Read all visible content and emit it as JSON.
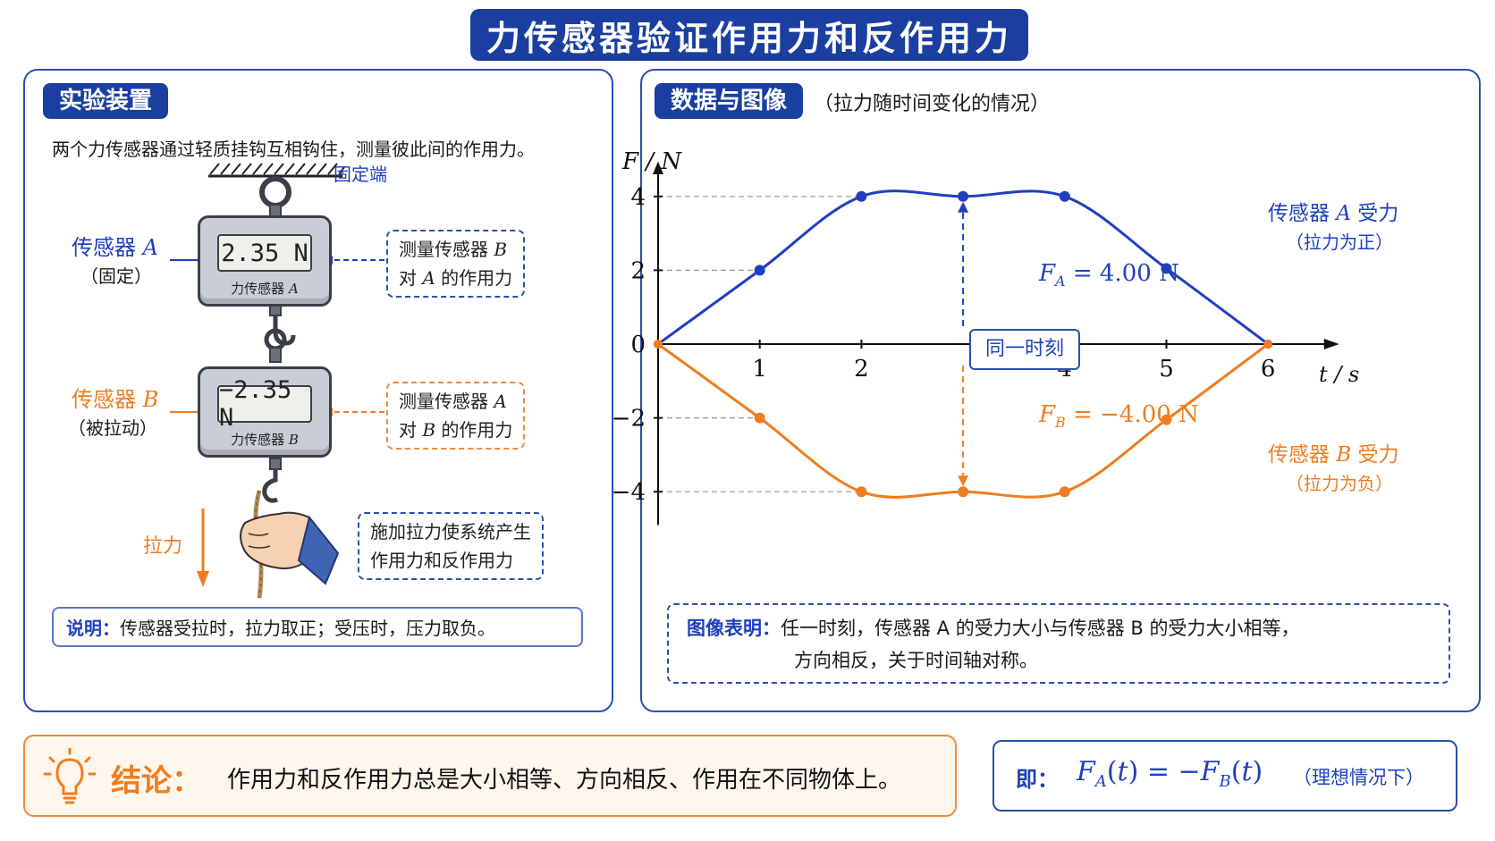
{
  "title": "力传感器验证作用力和反作用力",
  "left": {
    "section_label": "实验装置",
    "description": "两个力传感器通过轻质挂钩互相钩住，测量彼此间的作用力。",
    "fixed_end": "固定端",
    "sensor_a": {
      "label": "传感器",
      "letter": "A",
      "role": "（固定）",
      "display": "2.35 N",
      "device_name": "力传感器",
      "device_letter": "A"
    },
    "sensor_b": {
      "label": "传感器",
      "letter": "B",
      "role": "（被拉动）",
      "display": "−2.35 N",
      "device_name": "力传感器",
      "device_letter": "B"
    },
    "callout_a": {
      "line1_pre": "测量传感器",
      "line1_letter": "B",
      "line2_pre": "对",
      "line2_letter": "A",
      "line2_post": "的作用力"
    },
    "callout_b": {
      "line1_pre": "测量传感器",
      "line1_letter": "A",
      "line2_pre": "对",
      "line2_letter": "B",
      "line2_post": "的作用力"
    },
    "pull_label": "拉力",
    "pull_note": {
      "line1": "施加拉力使系统产生",
      "line2": "作用力和反作用力"
    },
    "note_key": "说明：",
    "note_text": "传感器受拉时，拉力取正；受压时，压力取负。"
  },
  "right": {
    "section_label": "数据与图像",
    "subtitle": "（拉力随时间变化的情况）",
    "same_moment": "同一时刻",
    "fa_annot": {
      "sym": "F",
      "sub": "A",
      "rest": "= 4.00 N"
    },
    "fb_annot": {
      "sym": "F",
      "sub": "B",
      "rest": "= −4.00 N"
    },
    "series_a_label": {
      "pre": "传感器",
      "letter": "A",
      "post": "受力",
      "sub": "（拉力为正）"
    },
    "series_b_label": {
      "pre": "传感器",
      "letter": "B",
      "post": "受力",
      "sub": "（拉力为负）"
    },
    "note_key": "图像表明：",
    "note_line1": "任一时刻，传感器 A 的受力大小与传感器 B 的受力大小相等，",
    "note_line2": "方向相反，关于时间轴对称。"
  },
  "chart_data": {
    "type": "line",
    "xlabel": "t / s",
    "ylabel": "F / N",
    "xlim": [
      0,
      6.6
    ],
    "ylim": [
      -4.5,
      4.5
    ],
    "x_ticks": [
      "1",
      "2",
      "4",
      "5",
      "6"
    ],
    "y_ticks": [
      "4",
      "2",
      "0",
      "−2",
      "−4"
    ],
    "series": [
      {
        "name": "传感器 A 受力",
        "color": "#1f3fbf",
        "x": [
          0,
          1,
          2,
          3,
          4,
          5,
          6
        ],
        "y": [
          0,
          2,
          4,
          4,
          4,
          2.05,
          0
        ],
        "markers_at": [
          1,
          2,
          3,
          4,
          5
        ]
      },
      {
        "name": "传感器 B 受力",
        "color": "#f07d1f",
        "x": [
          0,
          1,
          2,
          3,
          4,
          5,
          6
        ],
        "y": [
          0,
          -2,
          -4,
          -4,
          -4,
          -2.05,
          0
        ],
        "markers_at": [
          1,
          2,
          3,
          4,
          5
        ]
      }
    ]
  },
  "conclusion": {
    "key": "结论：",
    "text": "作用力和反作用力总是大小相等、方向相反、作用在不同物体上。"
  },
  "formula": {
    "key": "即：",
    "expr": "F_A(t) = −F_B(t)",
    "condition": "（理想情况下）"
  },
  "colors": {
    "blue": "#1f3fbf",
    "navy": "#1a3fa0",
    "orange": "#f07d1f"
  }
}
